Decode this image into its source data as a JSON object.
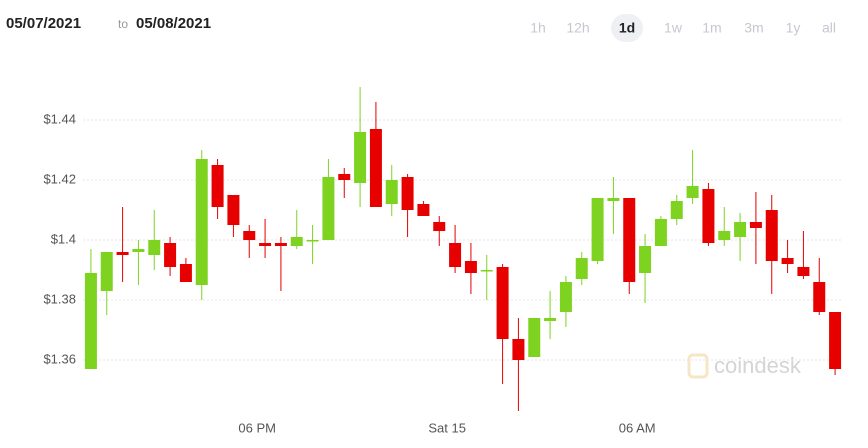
{
  "header": {
    "from": "05/07/2021",
    "to_word": "to",
    "to": "05/08/2021",
    "ranges": [
      "1h",
      "12h",
      "1d",
      "1w",
      "1m",
      "3m",
      "1y",
      "all"
    ],
    "selected_range": 2
  },
  "watermark": "coindesk",
  "chart_data": {
    "type": "candlestick",
    "categories": [
      null,
      null,
      null,
      null,
      null,
      null,
      null,
      null,
      null,
      null,
      null,
      "06 PM",
      null,
      null,
      null,
      null,
      null,
      null,
      null,
      null,
      null,
      null,
      null,
      "Sat 15",
      null,
      null,
      null,
      null,
      null,
      null,
      null,
      null,
      null,
      null,
      null,
      "06 AM",
      null,
      null,
      null,
      null,
      null,
      null,
      null,
      null,
      null,
      null,
      null,
      null
    ],
    "open": [
      1.357,
      1.383,
      1.396,
      1.396,
      1.395,
      1.399,
      1.392,
      1.385,
      1.425,
      1.415,
      1.403,
      1.399,
      1.399,
      1.398,
      1.4,
      1.4,
      1.422,
      1.419,
      1.437,
      1.412,
      1.421,
      1.412,
      1.406,
      1.399,
      1.393,
      1.39,
      1.391,
      1.367,
      1.361,
      1.373,
      1.376,
      1.387,
      1.393,
      1.413,
      1.414,
      1.389,
      1.398,
      1.407,
      1.414,
      1.417,
      1.4,
      1.401,
      1.406,
      1.41,
      1.394,
      1.391,
      1.386,
      1.376
    ],
    "high": [
      1.397,
      1.396,
      1.411,
      1.4,
      1.41,
      1.401,
      1.394,
      1.43,
      1.427,
      1.415,
      1.405,
      1.407,
      1.401,
      1.41,
      1.405,
      1.427,
      1.424,
      1.451,
      1.446,
      1.425,
      1.422,
      1.413,
      1.408,
      1.405,
      1.399,
      1.395,
      1.392,
      1.374,
      1.374,
      1.383,
      1.388,
      1.396,
      1.414,
      1.421,
      1.414,
      1.402,
      1.408,
      1.415,
      1.43,
      1.419,
      1.411,
      1.409,
      1.416,
      1.415,
      1.4,
      1.403,
      1.394,
      1.376
    ],
    "low": [
      1.357,
      1.375,
      1.386,
      1.385,
      1.39,
      1.388,
      1.386,
      1.38,
      1.407,
      1.401,
      1.394,
      1.394,
      1.383,
      1.397,
      1.392,
      1.4,
      1.414,
      1.411,
      1.411,
      1.408,
      1.401,
      1.408,
      1.398,
      1.389,
      1.382,
      1.38,
      1.352,
      1.343,
      1.361,
      1.367,
      1.371,
      1.385,
      1.392,
      1.402,
      1.382,
      1.379,
      1.398,
      1.405,
      1.412,
      1.398,
      1.398,
      1.393,
      1.392,
      1.382,
      1.389,
      1.387,
      1.375,
      1.355
    ],
    "close": [
      1.389,
      1.396,
      1.395,
      1.397,
      1.4,
      1.391,
      1.386,
      1.427,
      1.411,
      1.405,
      1.4,
      1.398,
      1.398,
      1.401,
      1.4,
      1.421,
      1.42,
      1.436,
      1.411,
      1.42,
      1.41,
      1.408,
      1.403,
      1.391,
      1.389,
      1.39,
      1.367,
      1.36,
      1.374,
      1.374,
      1.386,
      1.394,
      1.414,
      1.414,
      1.386,
      1.398,
      1.407,
      1.413,
      1.418,
      1.399,
      1.403,
      1.406,
      1.404,
      1.393,
      1.392,
      1.388,
      1.376,
      1.357
    ],
    "up_color": "#7ed321",
    "down_color": "#e60000",
    "ylim": [
      1.34,
      1.455
    ],
    "yticks": [
      {
        "value": 1.36,
        "label": "$1.36"
      },
      {
        "value": 1.38,
        "label": "$1.38"
      },
      {
        "value": 1.4,
        "label": "$1.4"
      },
      {
        "value": 1.42,
        "label": "$1.42"
      },
      {
        "value": 1.44,
        "label": "$1.44"
      }
    ],
    "grid": true
  }
}
